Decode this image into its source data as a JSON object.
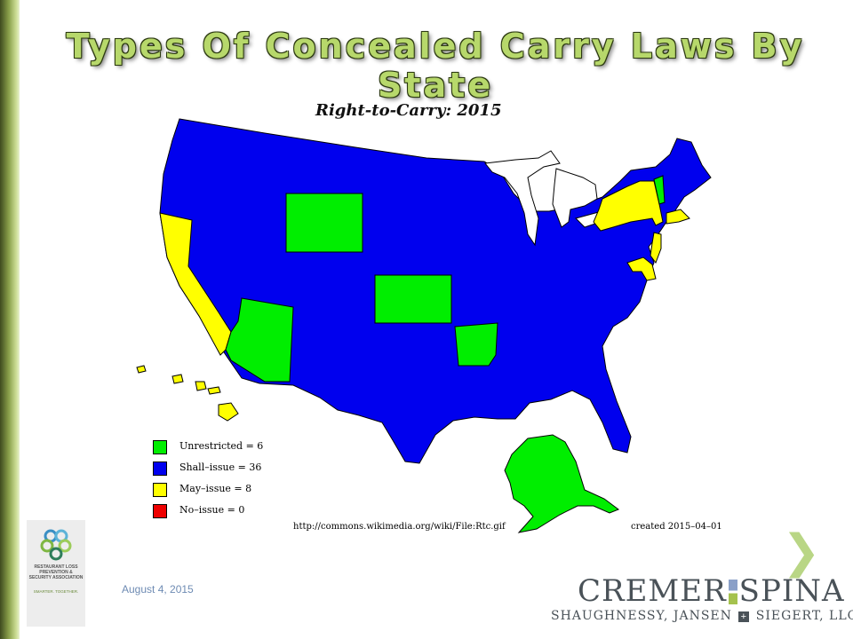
{
  "slide": {
    "title": "Types Of Concealed Carry Laws By State",
    "date": "August 4, 2015",
    "next_glyph": "❯"
  },
  "map": {
    "caption": "Right-to-Carry: 2015",
    "source_url": "http://commons.wikimedia.org/wiki/File:Rtc.gif",
    "created_note": "created 2015–04–01",
    "colors": {
      "unrestricted": "#00ee00",
      "shall_issue": "#0000ee",
      "may_issue": "#ffff00",
      "no_issue": "#ee0000"
    },
    "legend": [
      {
        "label": "Unrestricted = 6",
        "color": "#00ee00"
      },
      {
        "label": "Shall–issue = 36",
        "color": "#0000ee"
      },
      {
        "label": "May–issue = 8",
        "color": "#ffff00"
      },
      {
        "label": "No–issue = 0",
        "color": "#ee0000"
      }
    ]
  },
  "logo": {
    "text": "RESTAURANT LOSS PREVENTION & SECURITY ASSOCIATION",
    "tagline": "SMARTER. TOGETHER."
  },
  "firm": {
    "name_left": "CREMER",
    "name_right": "SPINA",
    "partners_left": "SHAUGHNESSY, JANSEN",
    "partners_right": "SIEGERT, LLC",
    "plus": "+"
  }
}
